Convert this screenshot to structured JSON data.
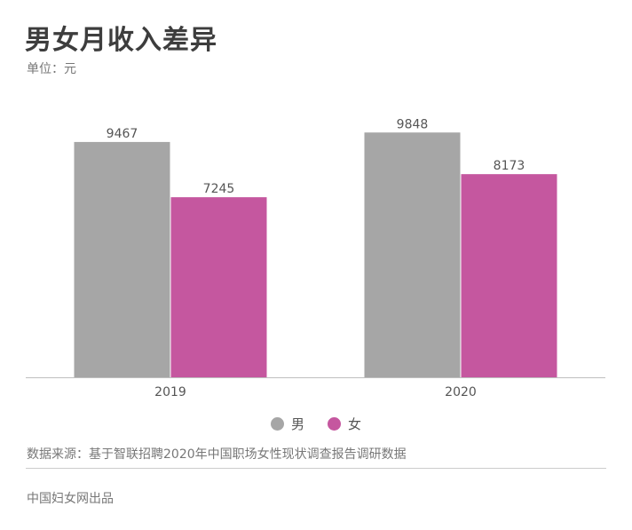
{
  "title": "男女月收入差异",
  "unit": "单位：元",
  "source": "数据来源：基于智联招聘2020年中国职场女性现状调查报告调研数据",
  "credit": "中国妇女网出品",
  "colors": {
    "male": "#a6a6a6",
    "female": "#c5579f",
    "axis": "#bfbfbf",
    "label": "#555555"
  },
  "chart_data": {
    "type": "bar",
    "title": "男女月收入差异",
    "ylabel": "单位：元",
    "categories": [
      "2019",
      "2020"
    ],
    "series": [
      {
        "name": "男",
        "values": [
          9467,
          9848
        ],
        "color": "#a6a6a6"
      },
      {
        "name": "女",
        "values": [
          7245,
          8173
        ],
        "color": "#c5579f"
      }
    ],
    "ylim": [
      0,
      10200
    ],
    "grid": false,
    "legend": "bottom-center",
    "data_labels": true
  }
}
